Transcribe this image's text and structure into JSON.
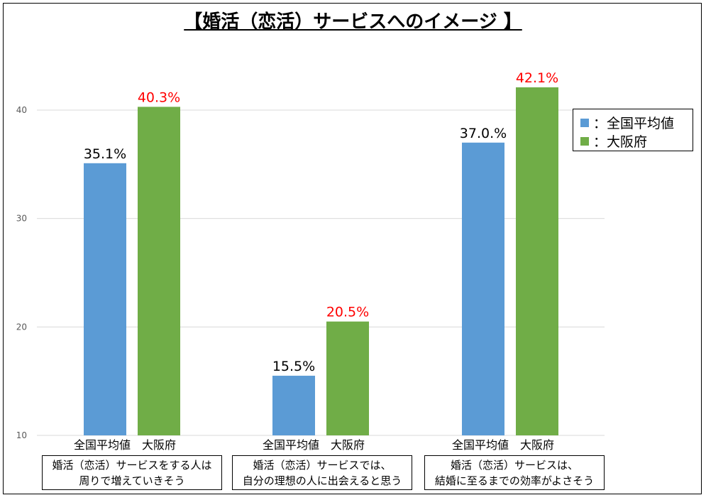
{
  "chart_data": {
    "type": "bar",
    "title": "【婚活（恋活）サービスへのイメージ 】",
    "categories": [
      "婚活（恋活）サービスをする人は\n周りで増えていきそう",
      "婚活（恋活）サービスでは、\n自分の理想の人に出会えると思う",
      "婚活（恋活）サービスは、\n結婚に至るまでの効率がよさそう"
    ],
    "series": [
      {
        "name": "全国平均値",
        "legend_label": "：全国平均値",
        "color": "#5b9bd5",
        "label_color": "#000000",
        "values": [
          35.1,
          15.5,
          37.0
        ],
        "labels": [
          "35.1%",
          "15.5%",
          "37.0.%"
        ]
      },
      {
        "name": "大阪府",
        "legend_label": "：大阪府",
        "color": "#70ad47",
        "label_color": "#ff0000",
        "values": [
          40.3,
          20.5,
          42.1
        ],
        "labels": [
          "40.3%",
          "20.5%",
          "42.1%"
        ]
      }
    ],
    "yticks": [
      10,
      20,
      30,
      40
    ],
    "ylim": [
      10,
      45
    ],
    "grid": true,
    "legend": "right",
    "xlabel": "",
    "ylabel": ""
  }
}
